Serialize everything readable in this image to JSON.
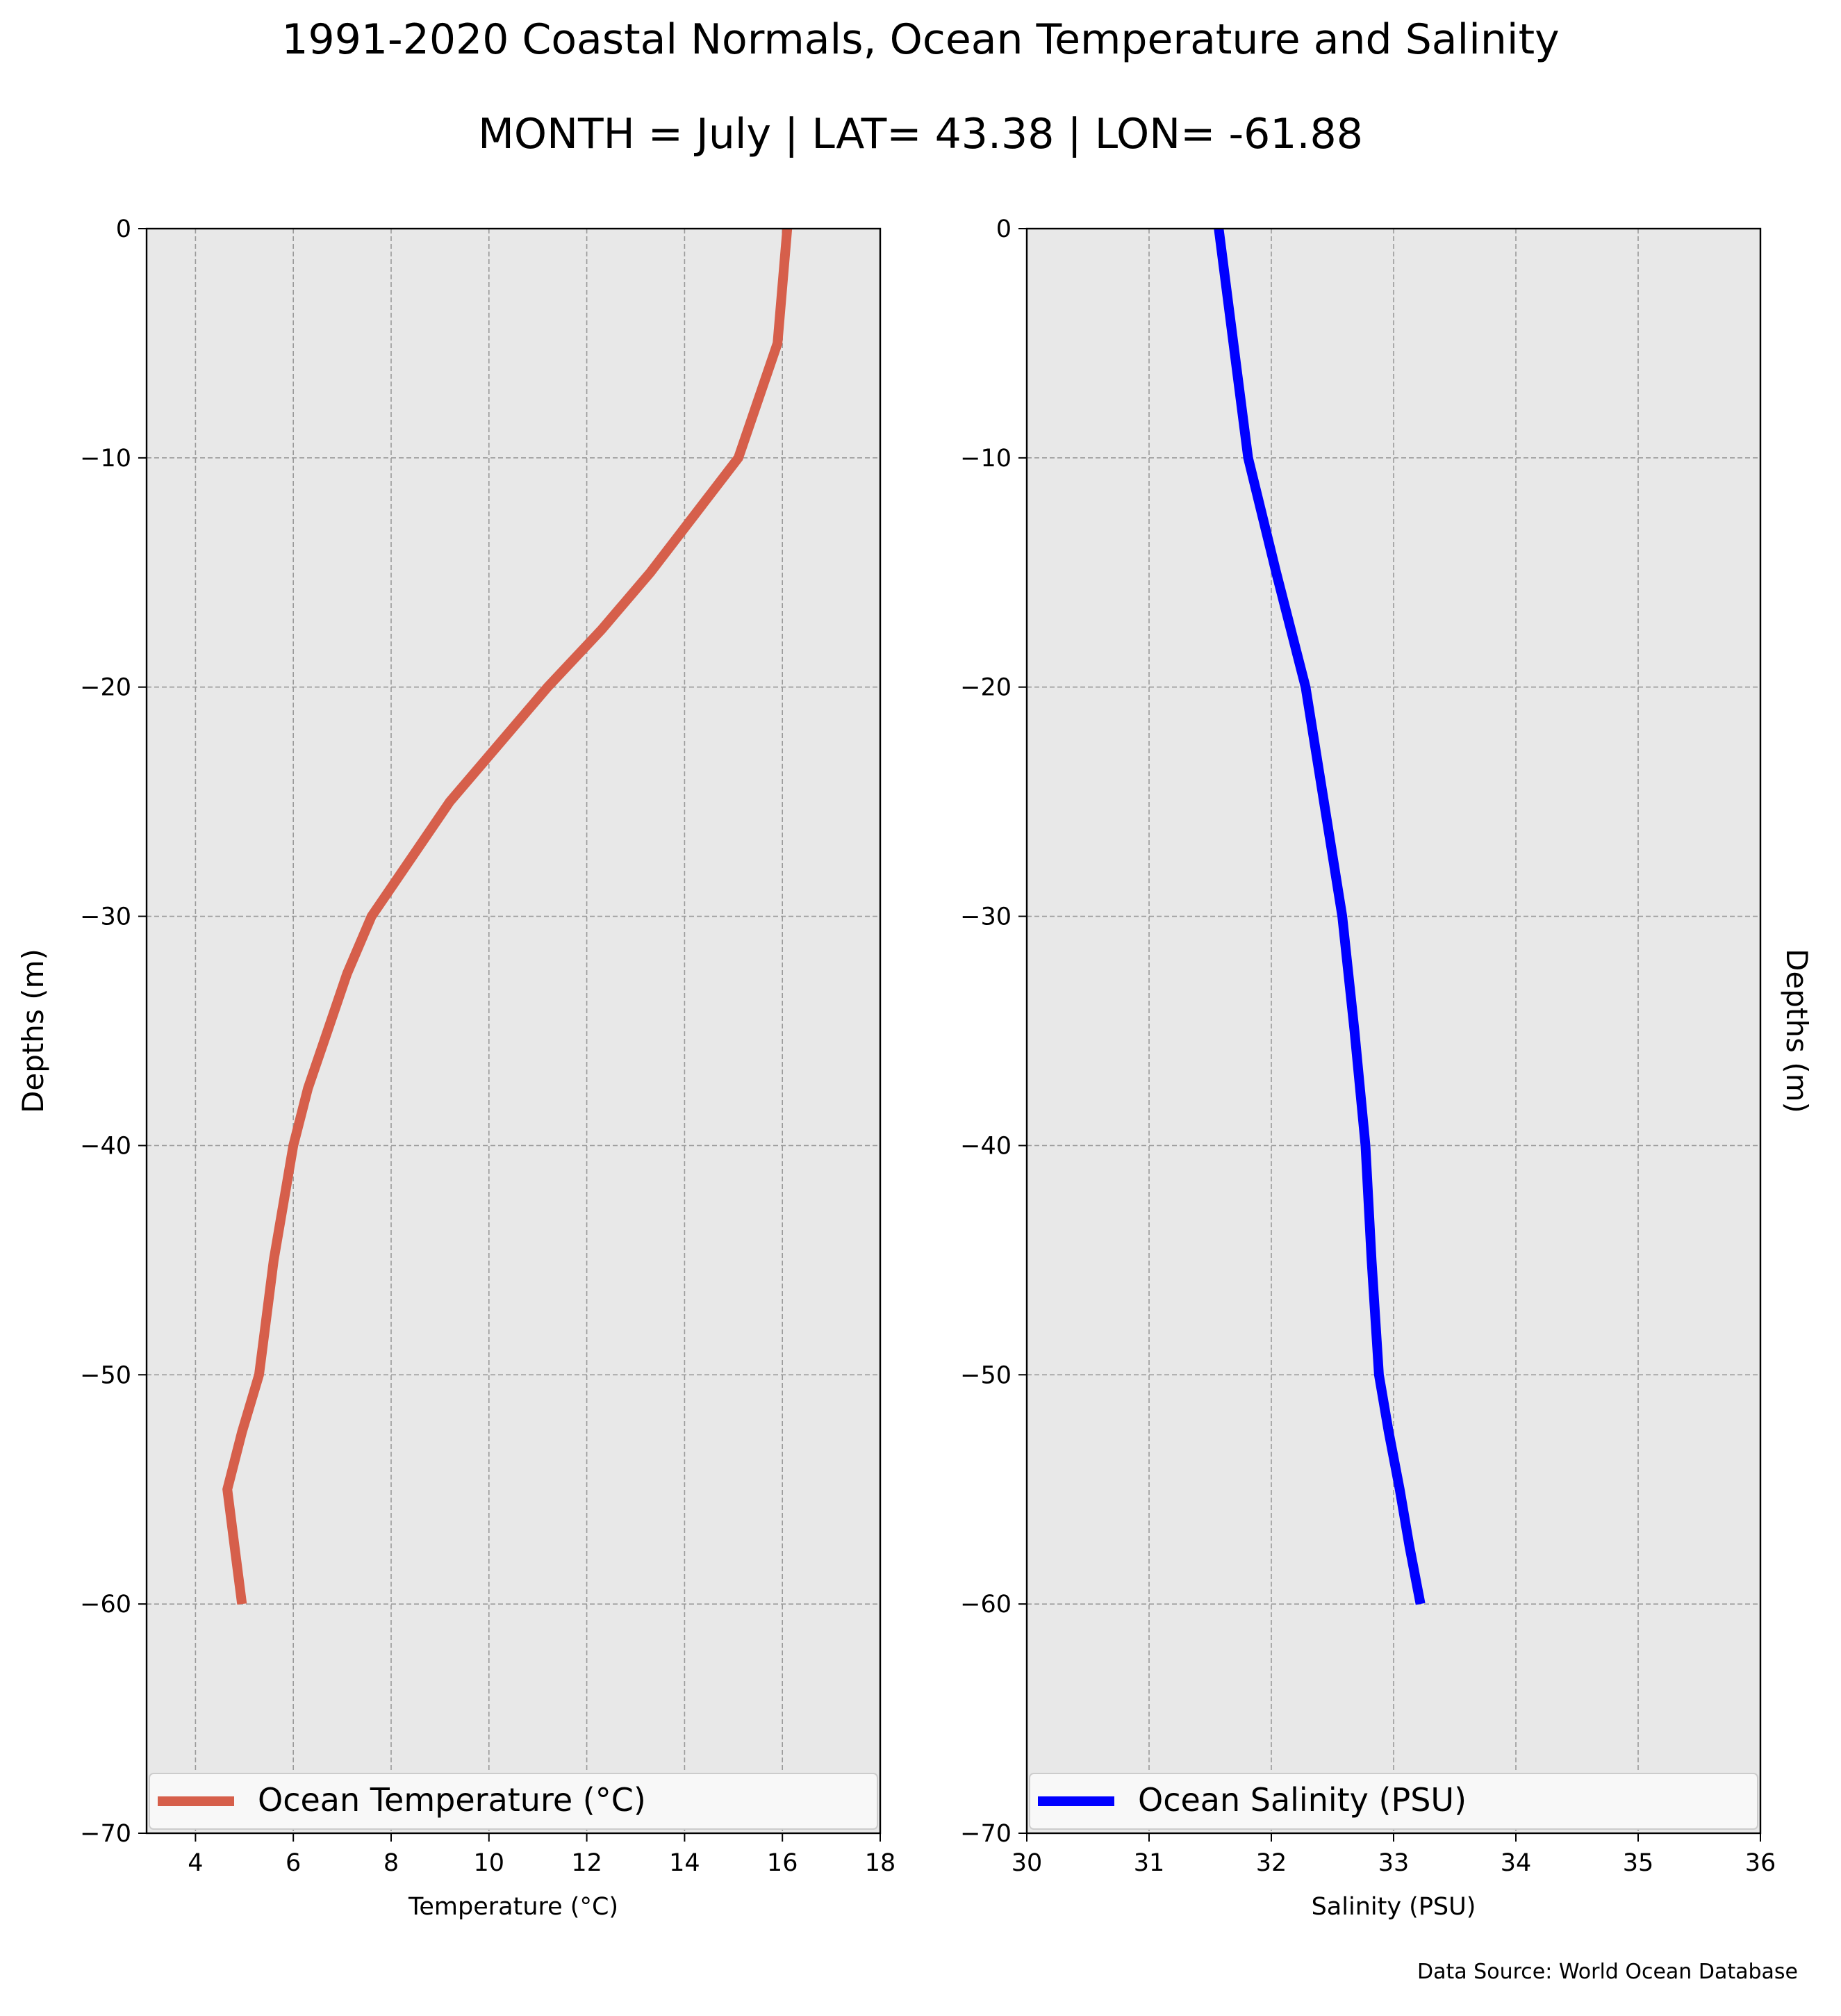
{
  "figure": {
    "title": "1991-2020 Coastal Normals, Ocean Temperature and Salinity",
    "subtitle": "MONTH = July | LAT= 43.38 | LON= -61.88",
    "source": "Data Source: World Ocean Database",
    "background": "#ffffff",
    "panel_background": "#e8e8e8",
    "grid_color": "#9a9a9a"
  },
  "chart_data": [
    {
      "type": "line",
      "xlabel": "Temperature ($^\\circ$C)",
      "xlabel_display": "Temperature (°C)",
      "ylabel": "Depths (m)",
      "xlim": [
        3,
        18
      ],
      "ylim": [
        -70,
        0
      ],
      "xticks": [
        4,
        6,
        8,
        10,
        12,
        14,
        16,
        18
      ],
      "xtick_labels": [
        "4",
        "6",
        "8",
        "10",
        "12",
        "14",
        "16",
        "18"
      ],
      "yticks": [
        0,
        -10,
        -20,
        -30,
        -40,
        -50,
        -60,
        -70
      ],
      "ytick_labels": [
        "0",
        "−10",
        "−20",
        "−30",
        "−40",
        "−50",
        "−60",
        "−70"
      ],
      "grid": true,
      "legend_position": "bottom",
      "series": [
        {
          "name": "Ocean Temperature ($^\\circ$C)",
          "legend_display": "Ocean Temperature (°C)",
          "color": "#d65f4b",
          "x": [
            16.1,
            15.9,
            15.1,
            14.2,
            13.3,
            12.3,
            11.2,
            10.2,
            9.2,
            8.4,
            7.6,
            7.1,
            6.7,
            6.3,
            6.0,
            5.8,
            5.6,
            5.45,
            5.3,
            4.95,
            4.65,
            4.8,
            4.95
          ],
          "y": [
            0,
            -5,
            -10,
            -12.5,
            -15,
            -17.5,
            -20,
            -22.5,
            -25,
            -27.5,
            -30,
            -32.5,
            -35,
            -37.5,
            -40,
            -42.5,
            -45,
            -47.5,
            -50,
            -52.5,
            -55,
            -57.5,
            -60
          ]
        }
      ]
    },
    {
      "type": "line",
      "xlabel": "Salinity (PSU)",
      "xlabel_display": "Salinity (PSU)",
      "ylabel": "Depths (m)",
      "ylabel_position": "right",
      "xlim": [
        30,
        36
      ],
      "ylim": [
        -70,
        0
      ],
      "xticks": [
        30,
        31,
        32,
        33,
        34,
        35,
        36
      ],
      "xtick_labels": [
        "30",
        "31",
        "32",
        "33",
        "34",
        "35",
        "36"
      ],
      "yticks": [
        0,
        -10,
        -20,
        -30,
        -40,
        -50,
        -60,
        -70
      ],
      "ytick_labels": [
        "0",
        "−10",
        "−20",
        "−30",
        "−40",
        "−50",
        "−60",
        "−70"
      ],
      "grid": true,
      "legend_position": "bottom",
      "series": [
        {
          "name": "Ocean Salinity (PSU)",
          "legend_display": "Ocean Salinity (PSU)",
          "color": "#0000ff",
          "x": [
            31.57,
            31.69,
            31.81,
            32.04,
            32.28,
            32.43,
            32.58,
            32.68,
            32.77,
            32.82,
            32.88,
            32.96,
            33.05,
            33.13,
            33.22
          ],
          "y": [
            0,
            -5,
            -10,
            -15,
            -20,
            -25,
            -30,
            -35,
            -40,
            -45,
            -50,
            -52.5,
            -55,
            -57.5,
            -60
          ]
        }
      ]
    }
  ]
}
